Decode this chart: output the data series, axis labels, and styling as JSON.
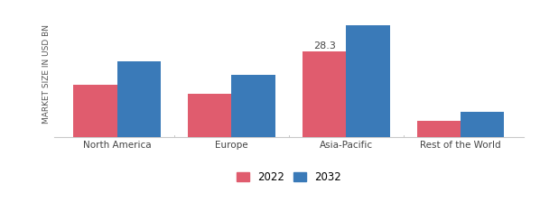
{
  "categories": [
    "North America",
    "Europe",
    "Asia-Pacific",
    "Rest of the World"
  ],
  "values_2022": [
    17.5,
    14.5,
    28.3,
    5.5
  ],
  "values_2032": [
    25.0,
    20.5,
    37.0,
    8.5
  ],
  "color_2022": "#e05c6e",
  "color_2032": "#3a7ab8",
  "annotation_value": "28.3",
  "annotation_category_idx": 2,
  "ylabel": "MARKET SIZE IN USD BN",
  "legend_2022": "2022",
  "legend_2032": "2032",
  "ylim": [
    0,
    42
  ],
  "bar_width": 0.38,
  "ylabel_fontsize": 6.5,
  "tick_fontsize": 7.5,
  "legend_fontsize": 8.5,
  "annotation_fontsize": 8,
  "background_color": "#ffffff",
  "spine_color": "#c8c8c8"
}
